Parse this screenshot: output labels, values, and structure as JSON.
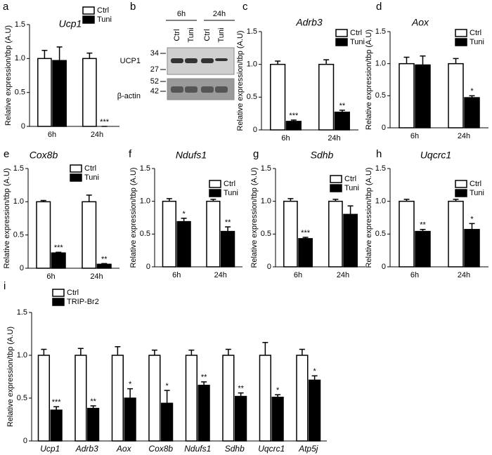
{
  "chart_data": [
    {
      "type": "bar",
      "panel": "a",
      "title": "Ucp1",
      "ylabel": "Relative expression/tbp (A.U)",
      "categories": [
        "6h",
        "24h"
      ],
      "series": [
        {
          "name": "Ctrl",
          "color": "#ffffff",
          "values": [
            1.0,
            1.0
          ],
          "errors": [
            0.12,
            0.08
          ],
          "significance": [
            null,
            null
          ]
        },
        {
          "name": "Tuni",
          "color": "#000000",
          "values": [
            0.97,
            0
          ],
          "errors": [
            0.2,
            0
          ],
          "significance": [
            null,
            "***"
          ]
        }
      ],
      "ylim": [
        0,
        1.5
      ],
      "yticks": [
        0,
        0.5,
        {
          "value": 1,
          "label": "1.0"
        },
        1.5
      ]
    },
    {
      "type": "blot",
      "panel": "b",
      "times": [
        "6h",
        "24h"
      ],
      "lanes": [
        "Ctrl",
        "Tuni",
        "Ctrl",
        "Tuni"
      ],
      "bands": [
        {
          "label": "UCP1",
          "markers": [
            34,
            27
          ]
        },
        {
          "label": "β-actin",
          "markers": [
            52,
            42
          ]
        }
      ]
    },
    {
      "type": "bar",
      "panel": "c",
      "title": "Adrb3",
      "ylabel": "Relative expression/tbp (A.U)",
      "categories": [
        "6h",
        "24h"
      ],
      "series": [
        {
          "name": "Ctrl",
          "color": "#ffffff",
          "values": [
            1.0,
            1.0
          ],
          "errors": [
            0.05,
            0.07
          ],
          "significance": [
            null,
            null
          ]
        },
        {
          "name": "Tuni",
          "color": "#000000",
          "values": [
            0.13,
            0.27
          ],
          "errors": [
            0.02,
            0.03
          ],
          "significance": [
            "***",
            "**"
          ]
        }
      ],
      "ylim": [
        0,
        1.5
      ],
      "yticks": [
        0,
        0.5,
        {
          "value": 1,
          "label": "1.0"
        },
        1.5
      ]
    },
    {
      "type": "bar",
      "panel": "d",
      "title": "Aox",
      "ylabel": "Relative expression/tbp (A.U)",
      "categories": [
        "6h",
        "24h"
      ],
      "series": [
        {
          "name": "Ctrl",
          "color": "#ffffff",
          "values": [
            1.0,
            1.0
          ],
          "errors": [
            0.1,
            0.08
          ],
          "significance": [
            null,
            null
          ]
        },
        {
          "name": "Tuni",
          "color": "#000000",
          "values": [
            0.98,
            0.47
          ],
          "errors": [
            0.14,
            0.03
          ],
          "significance": [
            null,
            "*"
          ]
        }
      ],
      "ylim": [
        0,
        1.5
      ],
      "yticks": [
        0,
        0.5,
        {
          "value": 1,
          "label": "1.0"
        },
        1.5
      ]
    },
    {
      "type": "bar",
      "panel": "e",
      "title": "Cox8b",
      "ylabel": "Relative expression/tbp (A.U)",
      "categories": [
        "6h",
        "24h"
      ],
      "series": [
        {
          "name": "Ctrl",
          "color": "#ffffff",
          "values": [
            1.0,
            1.0
          ],
          "errors": [
            0.02,
            0.1
          ],
          "significance": [
            null,
            null
          ]
        },
        {
          "name": "Tuni",
          "color": "#000000",
          "values": [
            0.23,
            0.06
          ],
          "errors": [
            0.01,
            0.01
          ],
          "significance": [
            "***",
            "**"
          ]
        }
      ],
      "ylim": [
        0,
        1.5
      ],
      "yticks": [
        0,
        0.5,
        {
          "value": 1,
          "label": "1.0"
        },
        1.5
      ]
    },
    {
      "type": "bar",
      "panel": "f",
      "title": "Ndufs1",
      "ylabel": "Relative expression/tbp (A.U)",
      "categories": [
        "6h",
        "24h"
      ],
      "series": [
        {
          "name": "Ctrl",
          "color": "#ffffff",
          "values": [
            1.0,
            1.0
          ],
          "errors": [
            0.04,
            0.03
          ],
          "significance": [
            null,
            null
          ]
        },
        {
          "name": "Tuni",
          "color": "#000000",
          "values": [
            0.69,
            0.54
          ],
          "errors": [
            0.05,
            0.07
          ],
          "significance": [
            "*",
            "**"
          ]
        }
      ],
      "ylim": [
        0,
        1.5
      ],
      "yticks": [
        0,
        0.5,
        {
          "value": 1,
          "label": "1.0"
        },
        1.5
      ]
    },
    {
      "type": "bar",
      "panel": "g",
      "title": "Sdhb",
      "ylabel": "Relative expression/tbp (A.U)",
      "categories": [
        "6h",
        "24h"
      ],
      "series": [
        {
          "name": "Ctrl",
          "color": "#ffffff",
          "values": [
            1.0,
            1.0
          ],
          "errors": [
            0.04,
            0.03
          ],
          "significance": [
            null,
            null
          ]
        },
        {
          "name": "Tuni",
          "color": "#000000",
          "values": [
            0.43,
            0.8
          ],
          "errors": [
            0.02,
            0.13
          ],
          "significance": [
            "***",
            null
          ]
        }
      ],
      "ylim": [
        0,
        1.5
      ],
      "yticks": [
        0,
        0.5,
        {
          "value": 1,
          "label": "1.0"
        },
        1.5
      ]
    },
    {
      "type": "bar",
      "panel": "h",
      "title": "Uqcrc1",
      "ylabel": "Relative expression/tbp (A.U)",
      "categories": [
        "6h",
        "24h"
      ],
      "series": [
        {
          "name": "Ctrl",
          "color": "#ffffff",
          "values": [
            1.0,
            1.0
          ],
          "errors": [
            0.03,
            0.03
          ],
          "significance": [
            null,
            null
          ]
        },
        {
          "name": "Tuni",
          "color": "#000000",
          "values": [
            0.54,
            0.57
          ],
          "errors": [
            0.03,
            0.09
          ],
          "significance": [
            "**",
            "*"
          ]
        }
      ],
      "ylim": [
        0,
        1.5
      ],
      "yticks": [
        0,
        0.5,
        {
          "value": 1,
          "label": "1.0"
        },
        1.5
      ]
    },
    {
      "type": "bar",
      "panel": "i",
      "ylabel": "Relative expression/tbp (A.U)",
      "categories": [
        "Ucp1",
        "Adrb3",
        "Aox",
        "Cox8b",
        "Ndufs1",
        "Sdhb",
        "Uqcrc1",
        "Atp5j"
      ],
      "series": [
        {
          "name": "Ctrl",
          "color": "#ffffff",
          "values": [
            1,
            1,
            1,
            1,
            1,
            1,
            1,
            1
          ],
          "errors": [
            0.07,
            0.08,
            0.1,
            0.06,
            0.06,
            0.07,
            0.15,
            0.07
          ],
          "significance": [
            null,
            null,
            null,
            null,
            null,
            null,
            null,
            null
          ]
        },
        {
          "name": "TRIP-Br2",
          "color": "#000000",
          "values": [
            0.36,
            0.38,
            0.5,
            0.44,
            0.65,
            0.52,
            0.51,
            0.71
          ],
          "errors": [
            0.04,
            0.03,
            0.11,
            0.15,
            0.04,
            0.04,
            0.03,
            0.05
          ],
          "significance": [
            "***",
            "**",
            "*",
            "*",
            "**",
            "**",
            "*",
            "*"
          ]
        }
      ],
      "ylim": [
        0,
        1.5
      ],
      "yticks": [
        0,
        0.5,
        {
          "value": 1,
          "label": "1.0"
        },
        1.5
      ]
    }
  ]
}
